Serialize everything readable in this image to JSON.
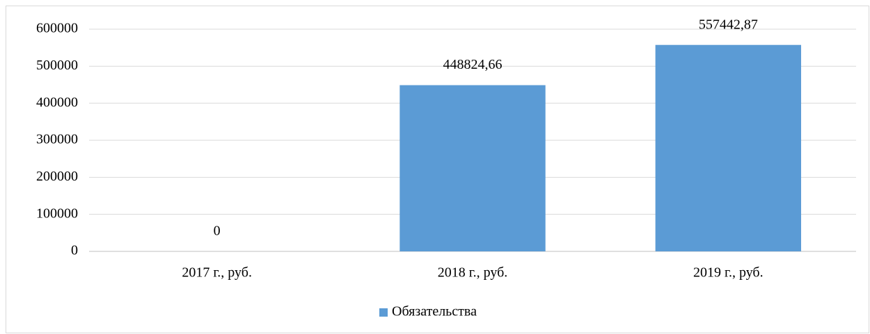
{
  "chart_data": {
    "type": "bar",
    "categories": [
      "2017 г., руб.",
      "2018 г., руб.",
      "2019 г., руб."
    ],
    "series": [
      {
        "name": "Обязательства",
        "color": "#5b9bd5",
        "values": [
          0,
          448824.66,
          557442.87
        ],
        "value_labels": [
          "0",
          "448824,66",
          "557442,87"
        ]
      }
    ],
    "ylim": [
      0,
      600000
    ],
    "yticks": [
      0,
      100000,
      200000,
      300000,
      400000,
      500000,
      600000
    ],
    "grid": true,
    "legend": "bottom"
  }
}
